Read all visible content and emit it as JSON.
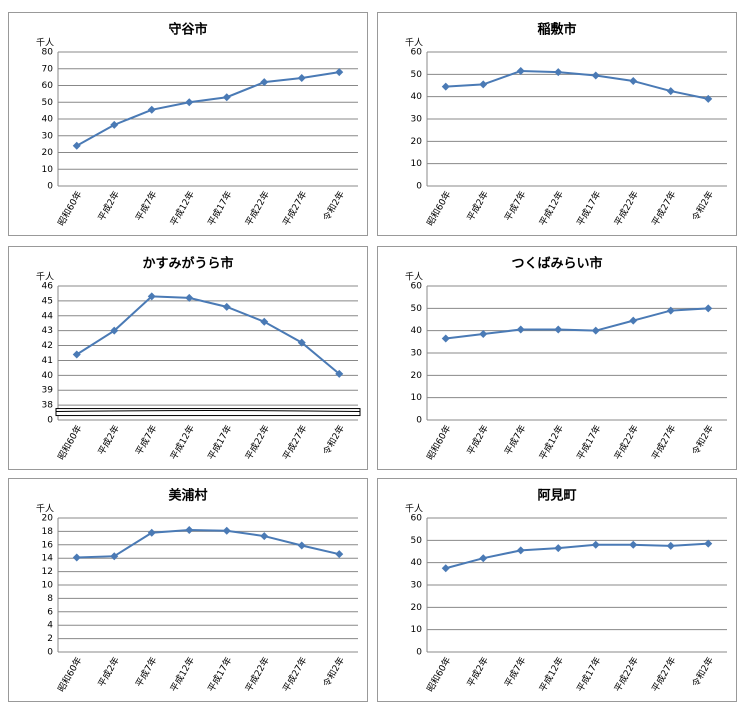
{
  "chart_data": [
    {
      "type": "line",
      "title": "守谷市",
      "y_label": "千人",
      "categories": [
        "昭和60年",
        "平成2年",
        "平成7年",
        "平成12年",
        "平成17年",
        "平成22年",
        "平成27年",
        "令和2年"
      ],
      "values": [
        24,
        36.5,
        45.5,
        50,
        53,
        62,
        64.5,
        68
      ],
      "color": "#4a7ab5",
      "ylim": [
        0,
        80
      ],
      "yticks": [
        0,
        10,
        20,
        30,
        40,
        50,
        60,
        70,
        80
      ],
      "grid": true
    },
    {
      "type": "line",
      "title": "稲敷市",
      "y_label": "千人",
      "categories": [
        "昭和60年",
        "平成2年",
        "平成7年",
        "平成12年",
        "平成17年",
        "平成22年",
        "平成27年",
        "令和2年"
      ],
      "values": [
        44.5,
        45.5,
        51.5,
        51,
        49.5,
        47,
        42.5,
        39
      ],
      "color": "#4a7ab5",
      "ylim": [
        0,
        60
      ],
      "yticks": [
        0,
        10,
        20,
        30,
        40,
        50,
        60
      ],
      "grid": true
    },
    {
      "type": "line",
      "title": "かすみがうら市",
      "y_label": "千人",
      "categories": [
        "昭和60年",
        "平成2年",
        "平成7年",
        "平成12年",
        "平成17年",
        "平成22年",
        "平成27年",
        "令和2年"
      ],
      "values": [
        41.4,
        43,
        45.3,
        45.2,
        44.6,
        43.6,
        42.2,
        40.1
      ],
      "color": "#4a7ab5",
      "ylim": [
        0,
        46
      ],
      "yticks": [
        0,
        38,
        39,
        40,
        41,
        42,
        43,
        44,
        45,
        46
      ],
      "grid": true,
      "axis_break": true
    },
    {
      "type": "line",
      "title": "つくばみらい市",
      "y_label": "千人",
      "categories": [
        "昭和60年",
        "平成2年",
        "平成7年",
        "平成12年",
        "平成17年",
        "平成22年",
        "平成27年",
        "令和2年"
      ],
      "values": [
        36.5,
        38.5,
        40.5,
        40.5,
        40,
        44.5,
        49,
        50
      ],
      "color": "#4a7ab5",
      "ylim": [
        0,
        60
      ],
      "yticks": [
        0,
        10,
        20,
        30,
        40,
        50,
        60
      ],
      "grid": true
    },
    {
      "type": "line",
      "title": "美浦村",
      "y_label": "千人",
      "categories": [
        "昭和60年",
        "平成2年",
        "平成7年",
        "平成12年",
        "平成17年",
        "平成22年",
        "平成27年",
        "令和2年"
      ],
      "values": [
        14.1,
        14.3,
        17.8,
        18.2,
        18.1,
        17.3,
        15.9,
        14.6
      ],
      "color": "#4a7ab5",
      "ylim": [
        0,
        20
      ],
      "yticks": [
        0,
        2,
        4,
        6,
        8,
        10,
        12,
        14,
        16,
        18,
        20
      ],
      "grid": true
    },
    {
      "type": "line",
      "title": "阿見町",
      "y_label": "千人",
      "categories": [
        "昭和60年",
        "平成2年",
        "平成7年",
        "平成12年",
        "平成17年",
        "平成22年",
        "平成27年",
        "令和2年"
      ],
      "values": [
        37.5,
        42,
        45.5,
        46.5,
        48,
        48,
        47.5,
        48.5
      ],
      "color": "#4a7ab5",
      "ylim": [
        0,
        60
      ],
      "yticks": [
        0,
        10,
        20,
        30,
        40,
        50,
        60
      ],
      "grid": true
    }
  ]
}
